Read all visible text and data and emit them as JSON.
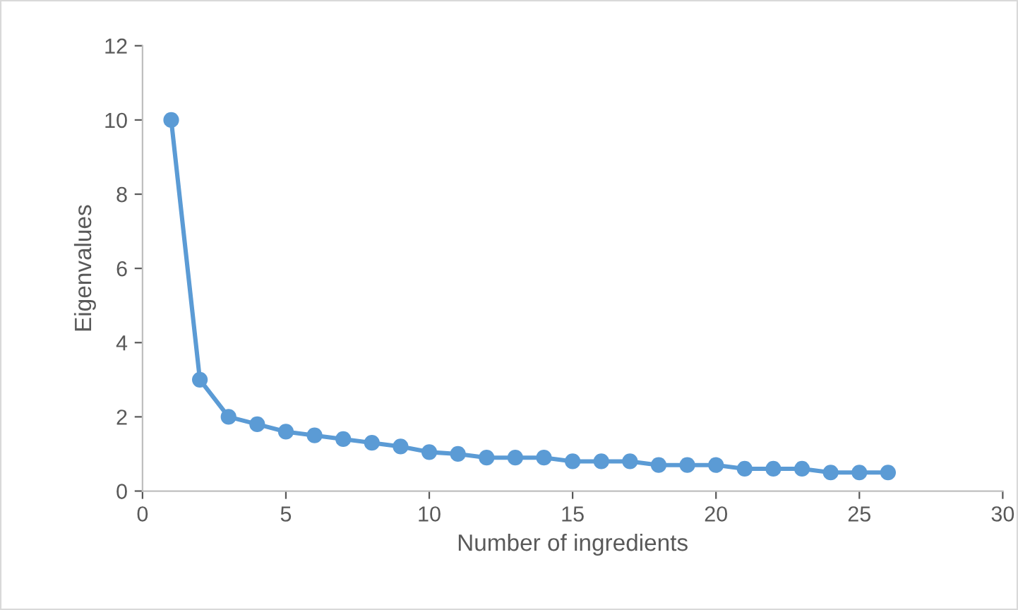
{
  "chart_data": {
    "type": "line",
    "xlabel": "Number of ingredients",
    "ylabel": "Eigenvalues",
    "x": [
      1,
      2,
      3,
      4,
      5,
      6,
      7,
      8,
      9,
      10,
      11,
      12,
      13,
      14,
      15,
      16,
      17,
      18,
      19,
      20,
      21,
      22,
      23,
      24,
      25,
      26
    ],
    "series": [
      {
        "color": "#5b9bd5",
        "values": [
          10,
          3,
          2,
          1.8,
          1.6,
          1.5,
          1.4,
          1.3,
          1.2,
          1.05,
          1,
          0.9,
          0.9,
          0.9,
          0.8,
          0.8,
          0.8,
          0.7,
          0.7,
          0.7,
          0.6,
          0.6,
          0.6,
          0.5,
          0.5,
          0.5
        ]
      }
    ],
    "xlim": [
      0,
      30
    ],
    "xticks": [
      0,
      5,
      10,
      15,
      20,
      25,
      30
    ],
    "ylim": [
      0,
      12
    ],
    "yticks": [
      0,
      2,
      4,
      6,
      8,
      10,
      12
    ],
    "grid": false,
    "legend": false,
    "marker": "circle",
    "line_style": "solid"
  }
}
